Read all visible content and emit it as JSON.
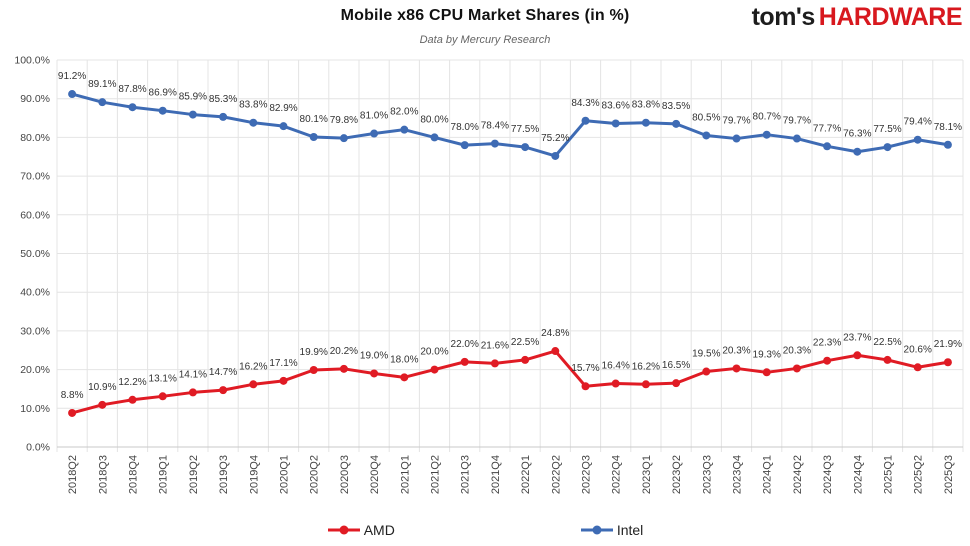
{
  "header": {
    "title": "Mobile x86 CPU Market Shares (in %)",
    "subtitle": "Data by Mercury Research",
    "logo": {
      "part1": "tom's",
      "part2": "HARDWARE",
      "dark_color": "#1d1d1d",
      "red_color": "#d8181e"
    }
  },
  "chart_data": {
    "type": "line",
    "categories": [
      "2018Q2",
      "2018Q3",
      "2018Q4",
      "2019Q1",
      "2019Q2",
      "2019Q3",
      "2019Q4",
      "2020Q1",
      "2020Q2",
      "2020Q3",
      "2020Q4",
      "2021Q1",
      "2021Q2",
      "2021Q3",
      "2021Q4",
      "2022Q1",
      "2022Q2",
      "2022Q3",
      "2022Q4",
      "2023Q1",
      "2023Q2",
      "2023Q3",
      "2023Q4",
      "2024Q1",
      "2024Q2",
      "2024Q3",
      "2024Q4",
      "2025Q1",
      "2025Q2",
      "2025Q3"
    ],
    "series": [
      {
        "name": "AMD",
        "color": "#e01b24",
        "values": [
          8.8,
          10.9,
          12.2,
          13.1,
          14.1,
          14.7,
          16.2,
          17.1,
          19.9,
          20.2,
          19.0,
          18.0,
          20.0,
          22.0,
          21.6,
          22.5,
          24.8,
          15.7,
          16.4,
          16.2,
          16.5,
          19.5,
          20.3,
          19.3,
          20.3,
          22.3,
          23.7,
          22.5,
          20.6,
          21.9
        ]
      },
      {
        "name": "Intel",
        "color": "#3e6bb4",
        "values": [
          91.2,
          89.1,
          87.8,
          86.9,
          85.9,
          85.3,
          83.8,
          82.9,
          80.1,
          79.8,
          81.0,
          82.0,
          80.0,
          78.0,
          78.4,
          77.5,
          75.2,
          84.3,
          83.6,
          83.8,
          83.5,
          80.5,
          79.7,
          80.7,
          79.7,
          77.7,
          76.3,
          77.5,
          79.4,
          78.1
        ]
      }
    ],
    "title": "Mobile x86 CPU Market Shares (in %)",
    "xlabel": "",
    "ylabel": "",
    "ylim": [
      0,
      100
    ],
    "ytick_labels": [
      "0.0%",
      "10.0%",
      "20.0%",
      "30.0%",
      "40.0%",
      "50.0%",
      "60.0%",
      "70.0%",
      "80.0%",
      "90.0%",
      "100.0%"
    ],
    "grid": true,
    "legend_position": "bottom",
    "data_label_suffix": "%"
  },
  "colors": {
    "grid": "#e4e4e4",
    "axis": "#c9c9c9",
    "tick_text": "#454545",
    "data_label_text": "#333333"
  }
}
